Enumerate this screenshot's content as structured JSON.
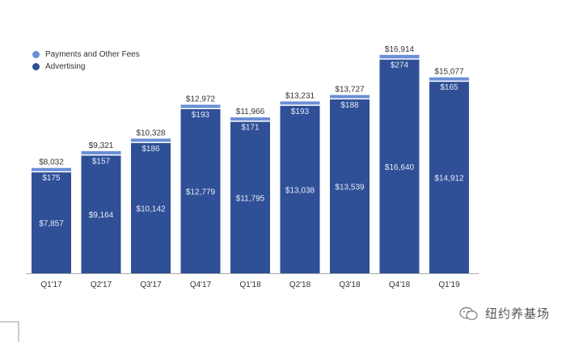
{
  "chart_data": {
    "type": "bar",
    "stacked": true,
    "categories": [
      "Q1'17",
      "Q2'17",
      "Q3'17",
      "Q4'17",
      "Q1'18",
      "Q2'18",
      "Q3'18",
      "Q4'18",
      "Q1'19"
    ],
    "series": [
      {
        "name": "Advertising",
        "values": [
          7857,
          9164,
          10142,
          12779,
          11795,
          13038,
          13539,
          16640,
          14912
        ],
        "labels": [
          "$7,857",
          "$9,164",
          "$10,142",
          "$12,779",
          "$11,795",
          "$13,038",
          "$13,539",
          "$16,640",
          "$14,912"
        ]
      },
      {
        "name": "Payments and Other Fees",
        "values": [
          175,
          157,
          186,
          193,
          171,
          193,
          188,
          274,
          165
        ],
        "labels": [
          "$175",
          "$157",
          "$186",
          "$193",
          "$171",
          "$193",
          "$188",
          "$274",
          "$165"
        ]
      }
    ],
    "totals": [
      8032,
      9321,
      10328,
      12972,
      11966,
      13231,
      13727,
      16914,
      15077
    ],
    "total_labels": [
      "$8,032",
      "$9,321",
      "$10,328",
      "$12,972",
      "$11,966",
      "$13,231",
      "$13,727",
      "$16,914",
      "$15,077"
    ],
    "ylim": [
      0,
      17000
    ],
    "grid": false,
    "legend_position": "top-left"
  },
  "colors": {
    "advertising": "#2f4f96",
    "payments": "#6b8fd6",
    "axis": "#aaaaaa",
    "label_inside": "#e6ecf8",
    "label_total": "#333333"
  },
  "legend": {
    "payments_label": "Payments and Other Fees",
    "advertising_label": "Advertising"
  },
  "watermark": {
    "text": "纽约养基场",
    "icon": "wechat-icon"
  }
}
